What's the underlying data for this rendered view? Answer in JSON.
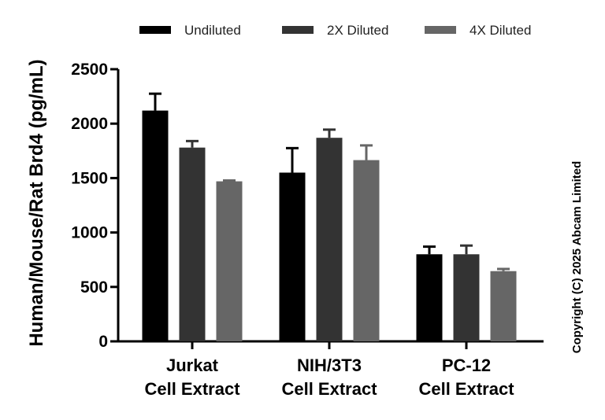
{
  "chart_data": {
    "type": "bar",
    "title": "",
    "ylabel": "Human/Mouse/Rat Brd4 (pg/mL)",
    "xlabel": "",
    "ylim": [
      0,
      2500
    ],
    "yticks": [
      0,
      500,
      1000,
      1500,
      2000,
      2500
    ],
    "categories": [
      {
        "line1": "Jurkat",
        "line2": "Cell Extract"
      },
      {
        "line1": "NIH/3T3",
        "line2": "Cell Extract"
      },
      {
        "line1": "PC-12",
        "line2": "Cell Extract"
      }
    ],
    "series": [
      {
        "name": "Undiluted",
        "color": "#000000",
        "values": [
          2120,
          1550,
          800
        ],
        "errors": [
          155,
          225,
          70
        ]
      },
      {
        "name": "2X Diluted",
        "color": "#333333",
        "values": [
          1780,
          1870,
          800
        ],
        "errors": [
          60,
          75,
          80
        ]
      },
      {
        "name": "4X Diluted",
        "color": "#666666",
        "values": [
          1470,
          1665,
          645
        ],
        "errors": [
          8,
          135,
          20
        ]
      }
    ],
    "legend_position": "top",
    "grid": false
  },
  "copyright": "Copyright (C) 2025 Abcam Limited"
}
